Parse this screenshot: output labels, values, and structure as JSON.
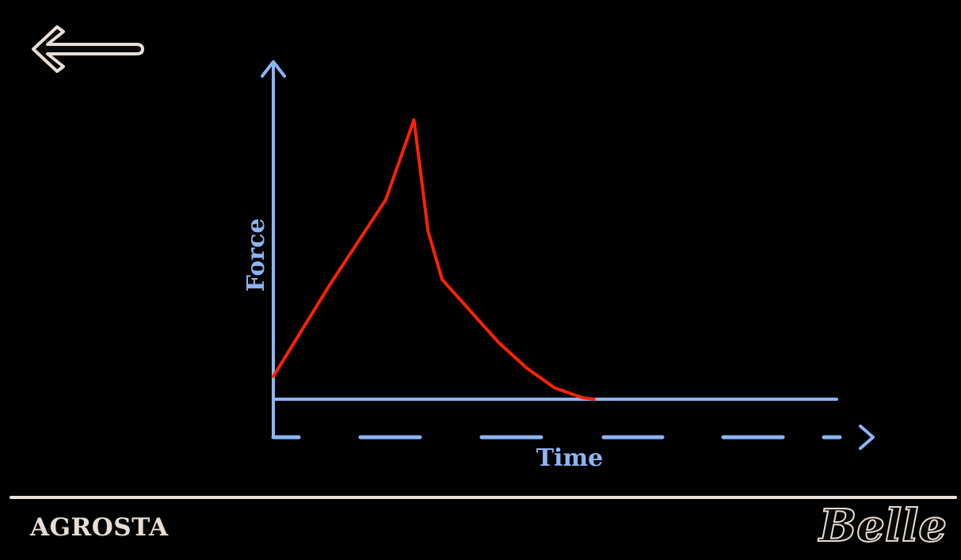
{
  "header": {
    "back_icon": "left-arrow-icon"
  },
  "chart_data": {
    "type": "line",
    "xlabel": "Time",
    "ylabel": "Force",
    "xlim": [
      0,
      100
    ],
    "ylim": [
      0,
      100
    ],
    "grid": false,
    "colors": {
      "axis": "#8db4f5",
      "line": "#ff2200"
    },
    "x": [
      0,
      5,
      10,
      15,
      20,
      25,
      27.5,
      30,
      35,
      40,
      45,
      50,
      55,
      57
    ],
    "y": [
      8,
      24,
      40,
      55,
      70,
      98,
      59,
      42,
      31,
      20,
      11,
      4,
      0.5,
      0
    ]
  },
  "footer": {
    "brand": "AGROSTA",
    "logo": "Belle",
    "colors": {
      "text": "#e6ded6",
      "divider": "#e9e2da"
    }
  }
}
